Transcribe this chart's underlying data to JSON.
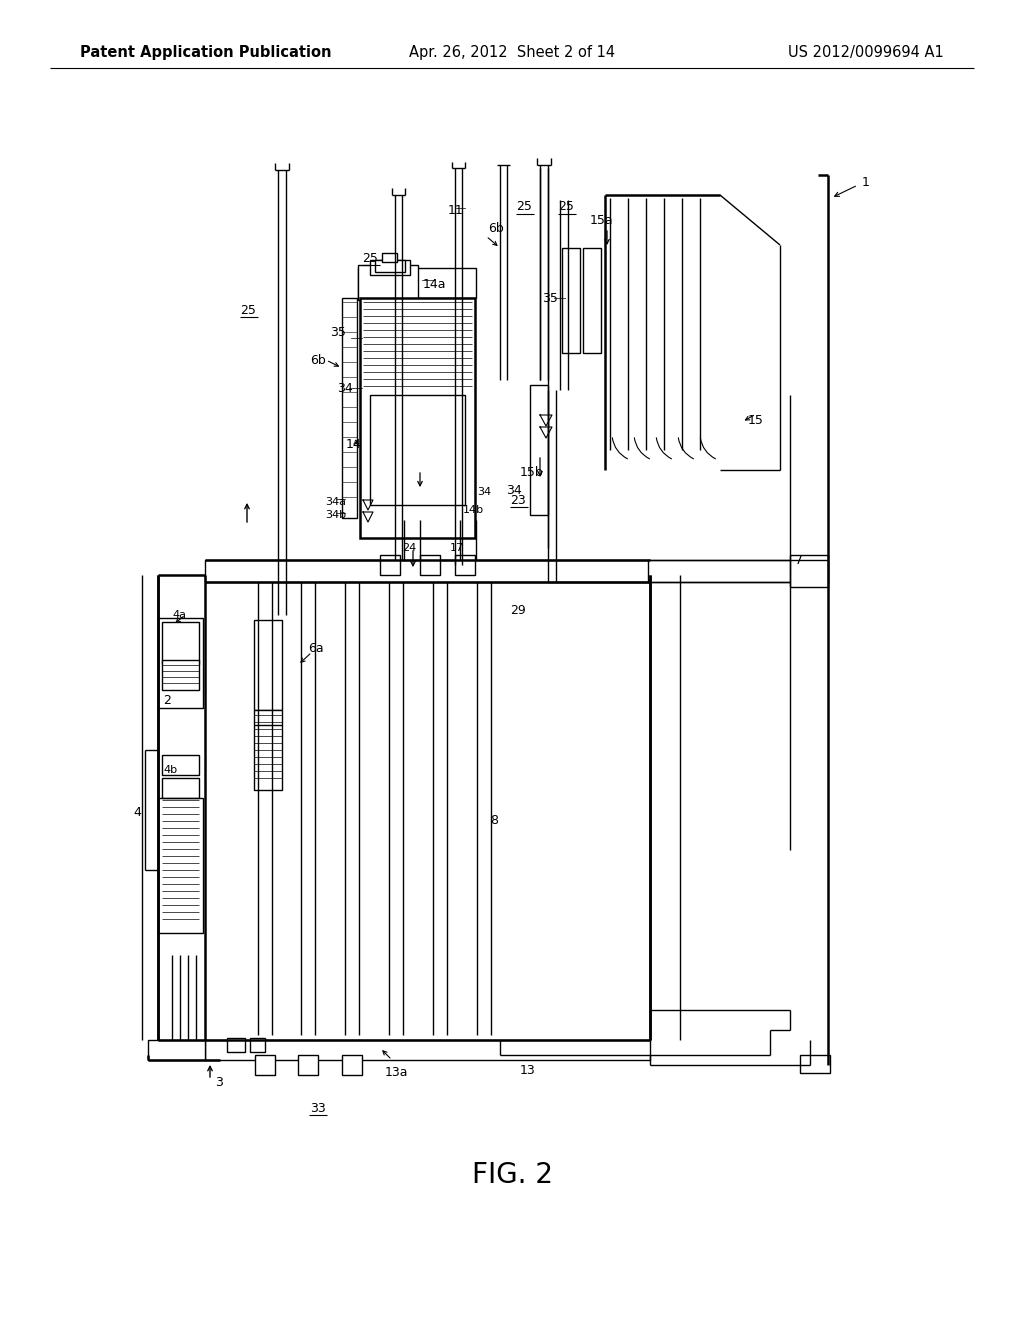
{
  "title_left": "Patent Application Publication",
  "title_mid": "Apr. 26, 2012  Sheet 2 of 14",
  "title_right": "US 2012/0099694 A1",
  "fig_label": "FIG. 2",
  "bg_color": "#ffffff",
  "line_color": "#000000",
  "title_fontsize": 10.5,
  "label_fontsize": 9,
  "fig_label_fontsize": 20
}
